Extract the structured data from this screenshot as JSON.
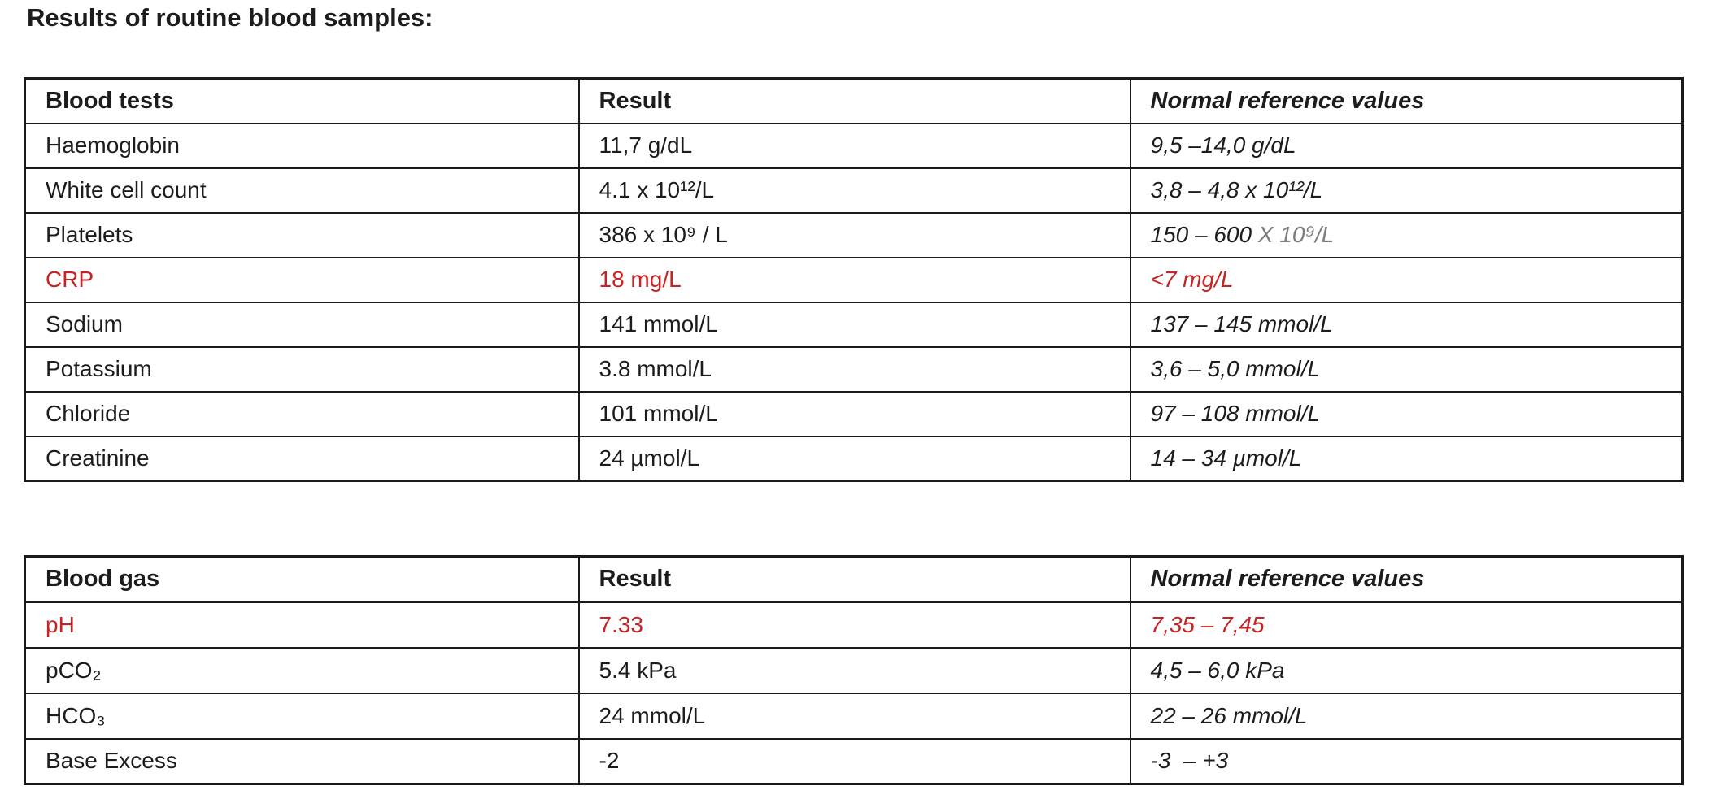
{
  "title": "Results of routine blood samples:",
  "colors": {
    "text": "#1c1c1c",
    "abnormal": "#c92222",
    "muted": "#7d7d7d",
    "border": "#1a1a1a",
    "background": "#ffffff"
  },
  "blood_tests": {
    "headers": {
      "test": "Blood tests",
      "result": "Result",
      "reference": "Normal reference values"
    },
    "rows": [
      {
        "test": "Haemoglobin",
        "result": "11,7 g/dL",
        "reference": "9,5 –14,0 g/dL"
      },
      {
        "test": "White cell count",
        "result": "4.1 x 10¹²/L",
        "reference": "3,8 – 4,8 x 10¹²/L"
      },
      {
        "test": "Platelets",
        "result": "386 x 10⁹ / L",
        "reference": "150 – 600 ",
        "reference_muted": "X 10⁹/L"
      },
      {
        "test": "CRP",
        "result": "18 mg/L",
        "reference": "<7 mg/L",
        "highlight": "abnormal"
      },
      {
        "test": "Sodium",
        "result": "141 mmol/L",
        "reference": "137 – 145 mmol/L"
      },
      {
        "test": "Potassium",
        "result": "3.8 mmol/L",
        "reference": "3,6 – 5,0 mmol/L"
      },
      {
        "test": "Chloride",
        "result": "101 mmol/L",
        "reference": "97 – 108 mmol/L"
      },
      {
        "test": "Creatinine",
        "result": "24 µmol/L",
        "reference": "14 – 34 µmol/L"
      }
    ]
  },
  "blood_gas": {
    "headers": {
      "test": "Blood gas",
      "result": "Result",
      "reference": "Normal reference values"
    },
    "rows": [
      {
        "test": "pH",
        "result": "7.33",
        "reference": "7,35 – 7,45",
        "highlight": "abnormal"
      },
      {
        "test": "pCO₂",
        "result": "5.4 kPa",
        "reference": "4,5 – 6,0 kPa"
      },
      {
        "test": "HCO₃",
        "result": "24 mmol/L",
        "reference": "22 – 26 mmol/L"
      },
      {
        "test": "Base Excess",
        "result": "-2",
        "reference": "-3  – +3"
      }
    ]
  }
}
